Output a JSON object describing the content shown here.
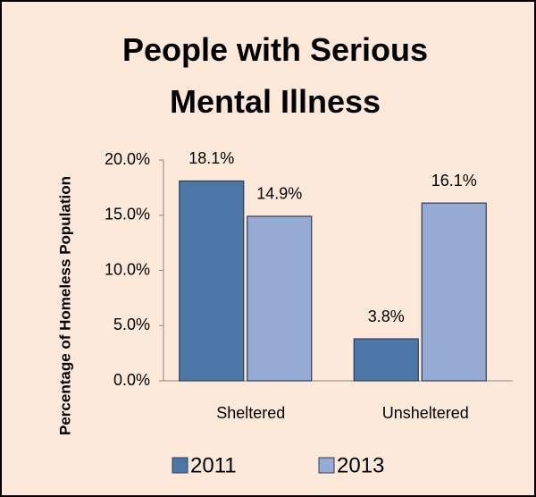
{
  "chart_data": {
    "type": "bar",
    "title": "People with Serious Mental Illness",
    "y_label": "Percentage of Homeless Population",
    "categories": [
      "Sheltered",
      "Unsheltered"
    ],
    "series": [
      {
        "name": "2011",
        "color": "#4a76a8",
        "values": [
          18.1,
          3.8
        ],
        "value_labels": [
          "18.1%",
          "3.8%"
        ]
      },
      {
        "name": "2013",
        "color": "#95abd3",
        "values": [
          14.9,
          16.1
        ],
        "value_labels": [
          "14.9%",
          "16.1%"
        ]
      }
    ],
    "ylim": [
      0,
      20
    ],
    "yticks": [
      {
        "value": 0,
        "label": "0.0%"
      },
      {
        "value": 5,
        "label": "5.0%"
      },
      {
        "value": 10,
        "label": "10.0%"
      },
      {
        "value": 15,
        "label": "15.0%"
      },
      {
        "value": 20,
        "label": "20.0%"
      }
    ],
    "legend": "bottom"
  }
}
